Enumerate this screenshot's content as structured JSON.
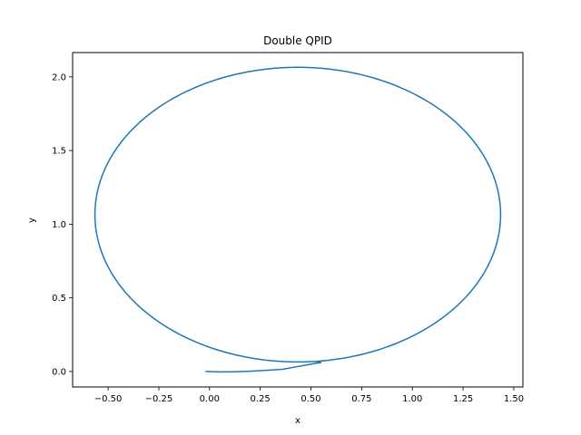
{
  "chart_data": {
    "type": "line",
    "title": "Double QPID",
    "xlabel": "x",
    "ylabel": "y",
    "xlim": [
      -0.675,
      1.545
    ],
    "ylim": [
      -0.105,
      2.165
    ],
    "x_ticks": [
      "−0.50",
      "−0.25",
      "0.00",
      "0.25",
      "0.50",
      "0.75",
      "1.00",
      "1.25",
      "1.50"
    ],
    "x_tick_values": [
      -0.5,
      -0.25,
      0.0,
      0.25,
      0.5,
      0.75,
      1.0,
      1.25,
      1.5
    ],
    "y_ticks": [
      "0.0",
      "0.5",
      "1.0",
      "1.5",
      "2.0"
    ],
    "y_tick_values": [
      0.0,
      0.5,
      1.0,
      1.5,
      2.0
    ],
    "grid": false,
    "series": [
      {
        "color": "#1f77b4",
        "transient": {
          "x": [
            -0.02,
            0.05,
            0.12,
            0.2,
            0.28,
            0.36,
            0.42,
            0.48,
            0.52,
            0.55
          ],
          "y": [
            0.0,
            -0.003,
            -0.002,
            0.002,
            0.008,
            0.015,
            0.03,
            0.045,
            0.055,
            0.06
          ]
        },
        "orbit": {
          "center": [
            0.435,
            1.065
          ],
          "radius_x": 1.0,
          "radius_y": 1.0,
          "start_deg": -85,
          "turns": 1.05
        }
      }
    ]
  }
}
